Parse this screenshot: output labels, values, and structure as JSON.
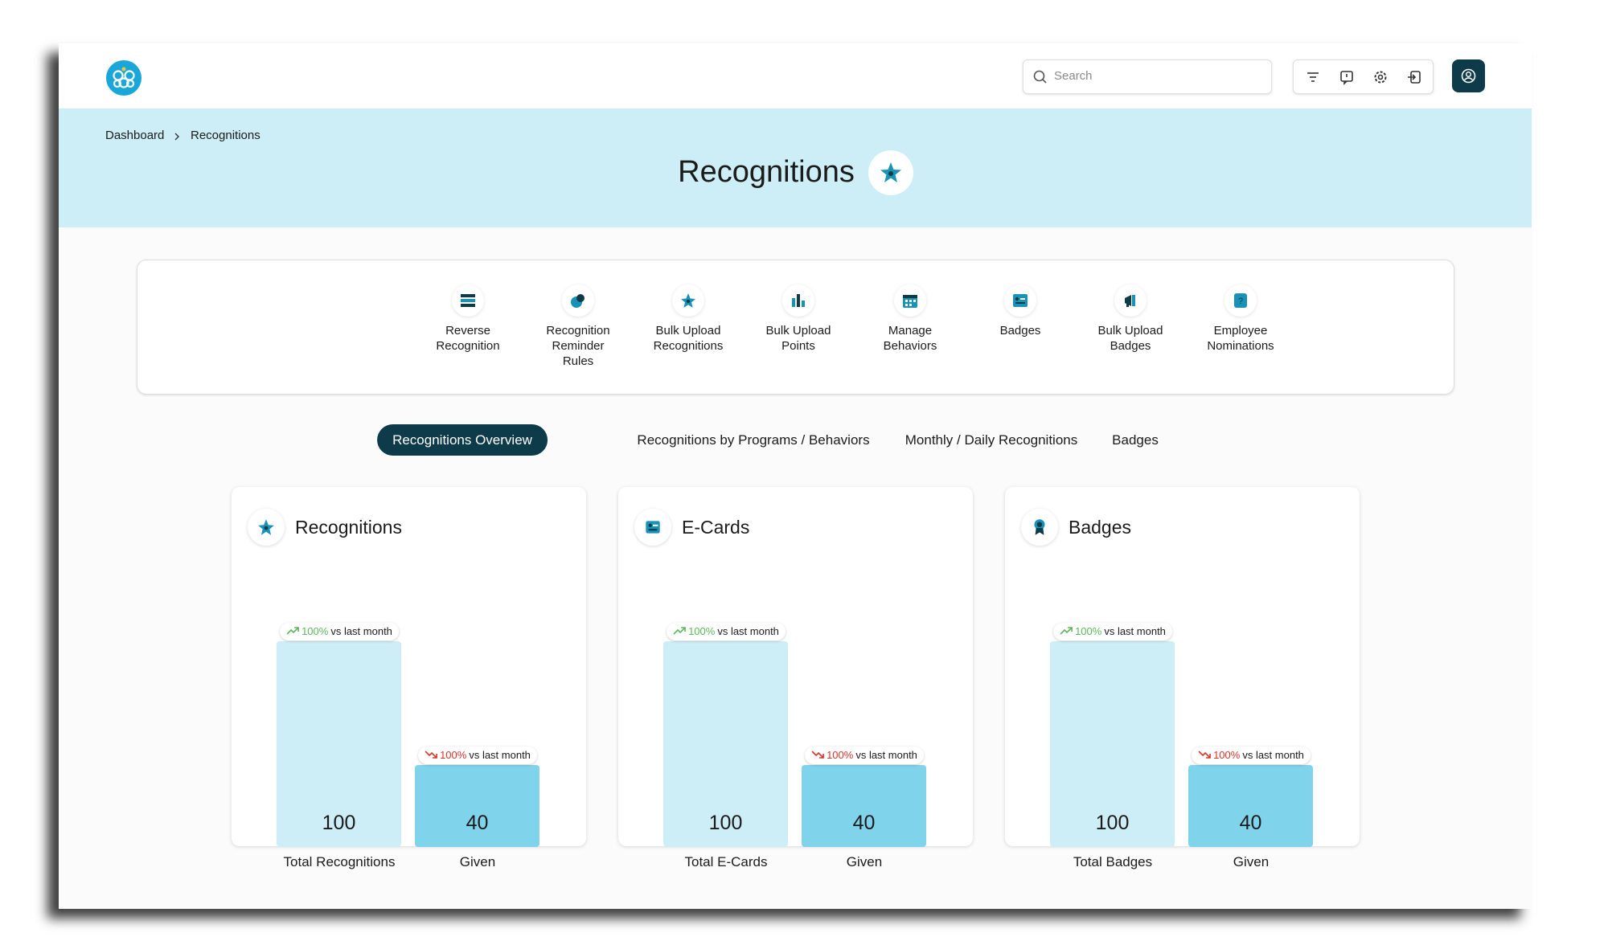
{
  "header": {
    "search_placeholder": "Search"
  },
  "breadcrumb": [
    "Dashboard",
    "Recognitions"
  ],
  "title": "Recognitions",
  "toolbar": [
    "Reverse Recognition",
    "Recognition Reminder Rules",
    "Bulk Upload Recognitions",
    "Bulk Upload Points",
    "Manage Behaviors",
    "Badges",
    "Bulk Upload Badges",
    "Employee Nominations"
  ],
  "tabs": [
    "Recognitions Overview",
    "Recognitions by Programs / Behaviors",
    "Monthly / Daily Recognitions",
    "Badges"
  ],
  "active_tab": 0,
  "cards": [
    {
      "title": "Recognitions",
      "bars": [
        {
          "label": "Total Recognitions",
          "value": 100,
          "change": "100%",
          "change_note": "vs last month",
          "trend": "up"
        },
        {
          "label": "Given",
          "value": 40,
          "change": "100%",
          "change_note": "vs last month",
          "trend": "down"
        }
      ]
    },
    {
      "title": "E-Cards",
      "bars": [
        {
          "label": "Total E-Cards",
          "value": 100,
          "change": "100%",
          "change_note": "vs last month",
          "trend": "up"
        },
        {
          "label": "Given",
          "value": 40,
          "change": "100%",
          "change_note": "vs last month",
          "trend": "down"
        }
      ]
    },
    {
      "title": "Badges",
      "bars": [
        {
          "label": "Total Badges",
          "value": 100,
          "change": "100%",
          "change_note": "vs last month",
          "trend": "up"
        },
        {
          "label": "Given",
          "value": 40,
          "change": "100%",
          "change_note": "vs last month",
          "trend": "down"
        }
      ]
    }
  ]
}
